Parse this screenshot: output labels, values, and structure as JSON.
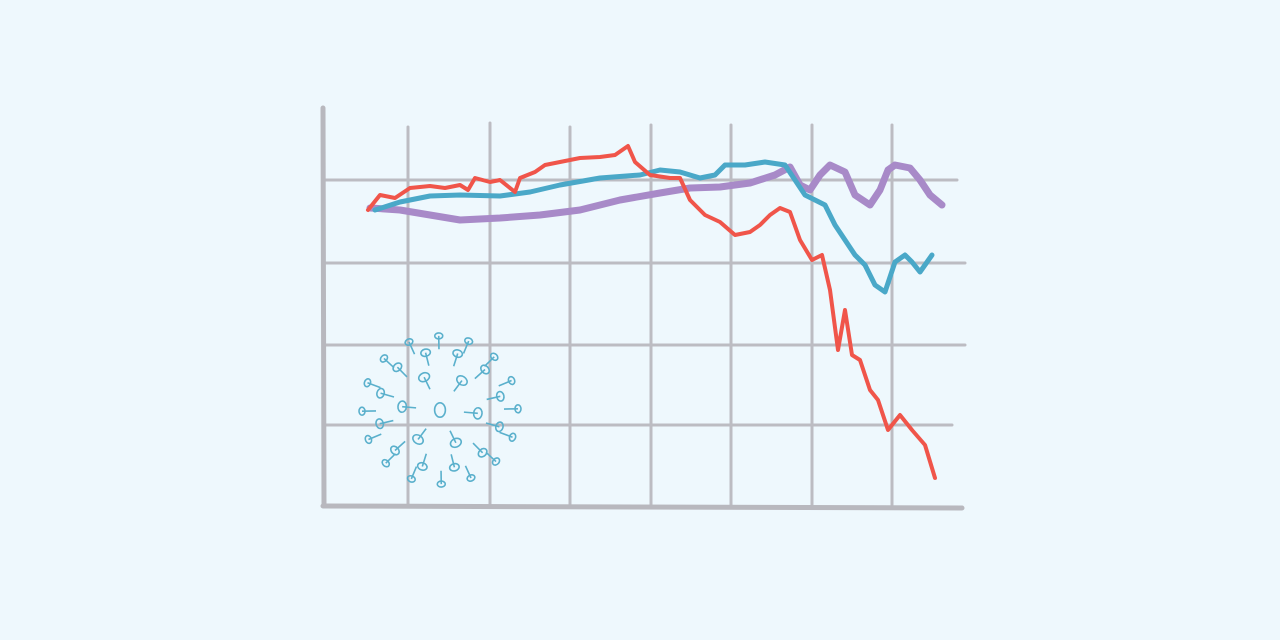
{
  "chart_data": {
    "type": "line",
    "xlim": [
      0,
      635
    ],
    "ylim": [
      0,
      397
    ],
    "grid": true,
    "series": [
      {
        "color": "#a88ac8",
        "line_width": 7,
        "x": [
          45,
          75,
          105,
          135,
          175,
          215,
          255,
          295,
          335,
          365,
          395,
          425,
          450,
          465,
          475,
          485,
          495,
          505,
          520,
          530,
          545,
          555,
          563,
          570,
          585,
          595,
          605,
          617
        ],
        "values": [
          297,
          295,
          290,
          285,
          287,
          290,
          295,
          305,
          312,
          317,
          318,
          322,
          330,
          338,
          320,
          315,
          330,
          340,
          333,
          310,
          300,
          315,
          335,
          340,
          337,
          325,
          310,
          300
        ]
      },
      {
        "color": "#4aa8c8",
        "line_width": 5,
        "x": [
          50,
          75,
          105,
          135,
          175,
          205,
          235,
          275,
          315,
          335,
          355,
          375,
          390,
          400,
          420,
          440,
          460,
          470,
          480,
          490,
          500,
          510,
          520,
          530,
          540,
          550,
          560,
          570,
          580,
          587,
          595,
          607
        ],
        "values": [
          295,
          303,
          309,
          310,
          309,
          313,
          320,
          327,
          330,
          335,
          333,
          327,
          330,
          340,
          340,
          343,
          340,
          325,
          310,
          305,
          300,
          280,
          265,
          250,
          240,
          220,
          213,
          243,
          250,
          243,
          233,
          250
        ]
      },
      {
        "color": "#f0554a",
        "line_width": 4,
        "x": [
          43,
          55,
          70,
          85,
          105,
          120,
          135,
          143,
          150,
          165,
          175,
          190,
          195,
          210,
          220,
          235,
          255,
          275,
          290,
          303,
          310,
          325,
          345,
          355,
          365,
          380,
          395,
          410,
          425,
          435,
          445,
          455,
          465,
          475,
          487,
          497,
          505,
          513,
          520,
          527,
          535,
          545,
          553,
          563,
          575,
          587,
          600,
          610
        ],
        "values": [
          295,
          310,
          307,
          317,
          319,
          317,
          320,
          315,
          327,
          323,
          325,
          313,
          327,
          333,
          340,
          343,
          347,
          348,
          350,
          359,
          343,
          330,
          327,
          327,
          305,
          290,
          283,
          270,
          273,
          280,
          290,
          297,
          293,
          265,
          245,
          250,
          215,
          155,
          195,
          150,
          145,
          115,
          105,
          75,
          90,
          75,
          60,
          27
        ]
      }
    ]
  }
}
